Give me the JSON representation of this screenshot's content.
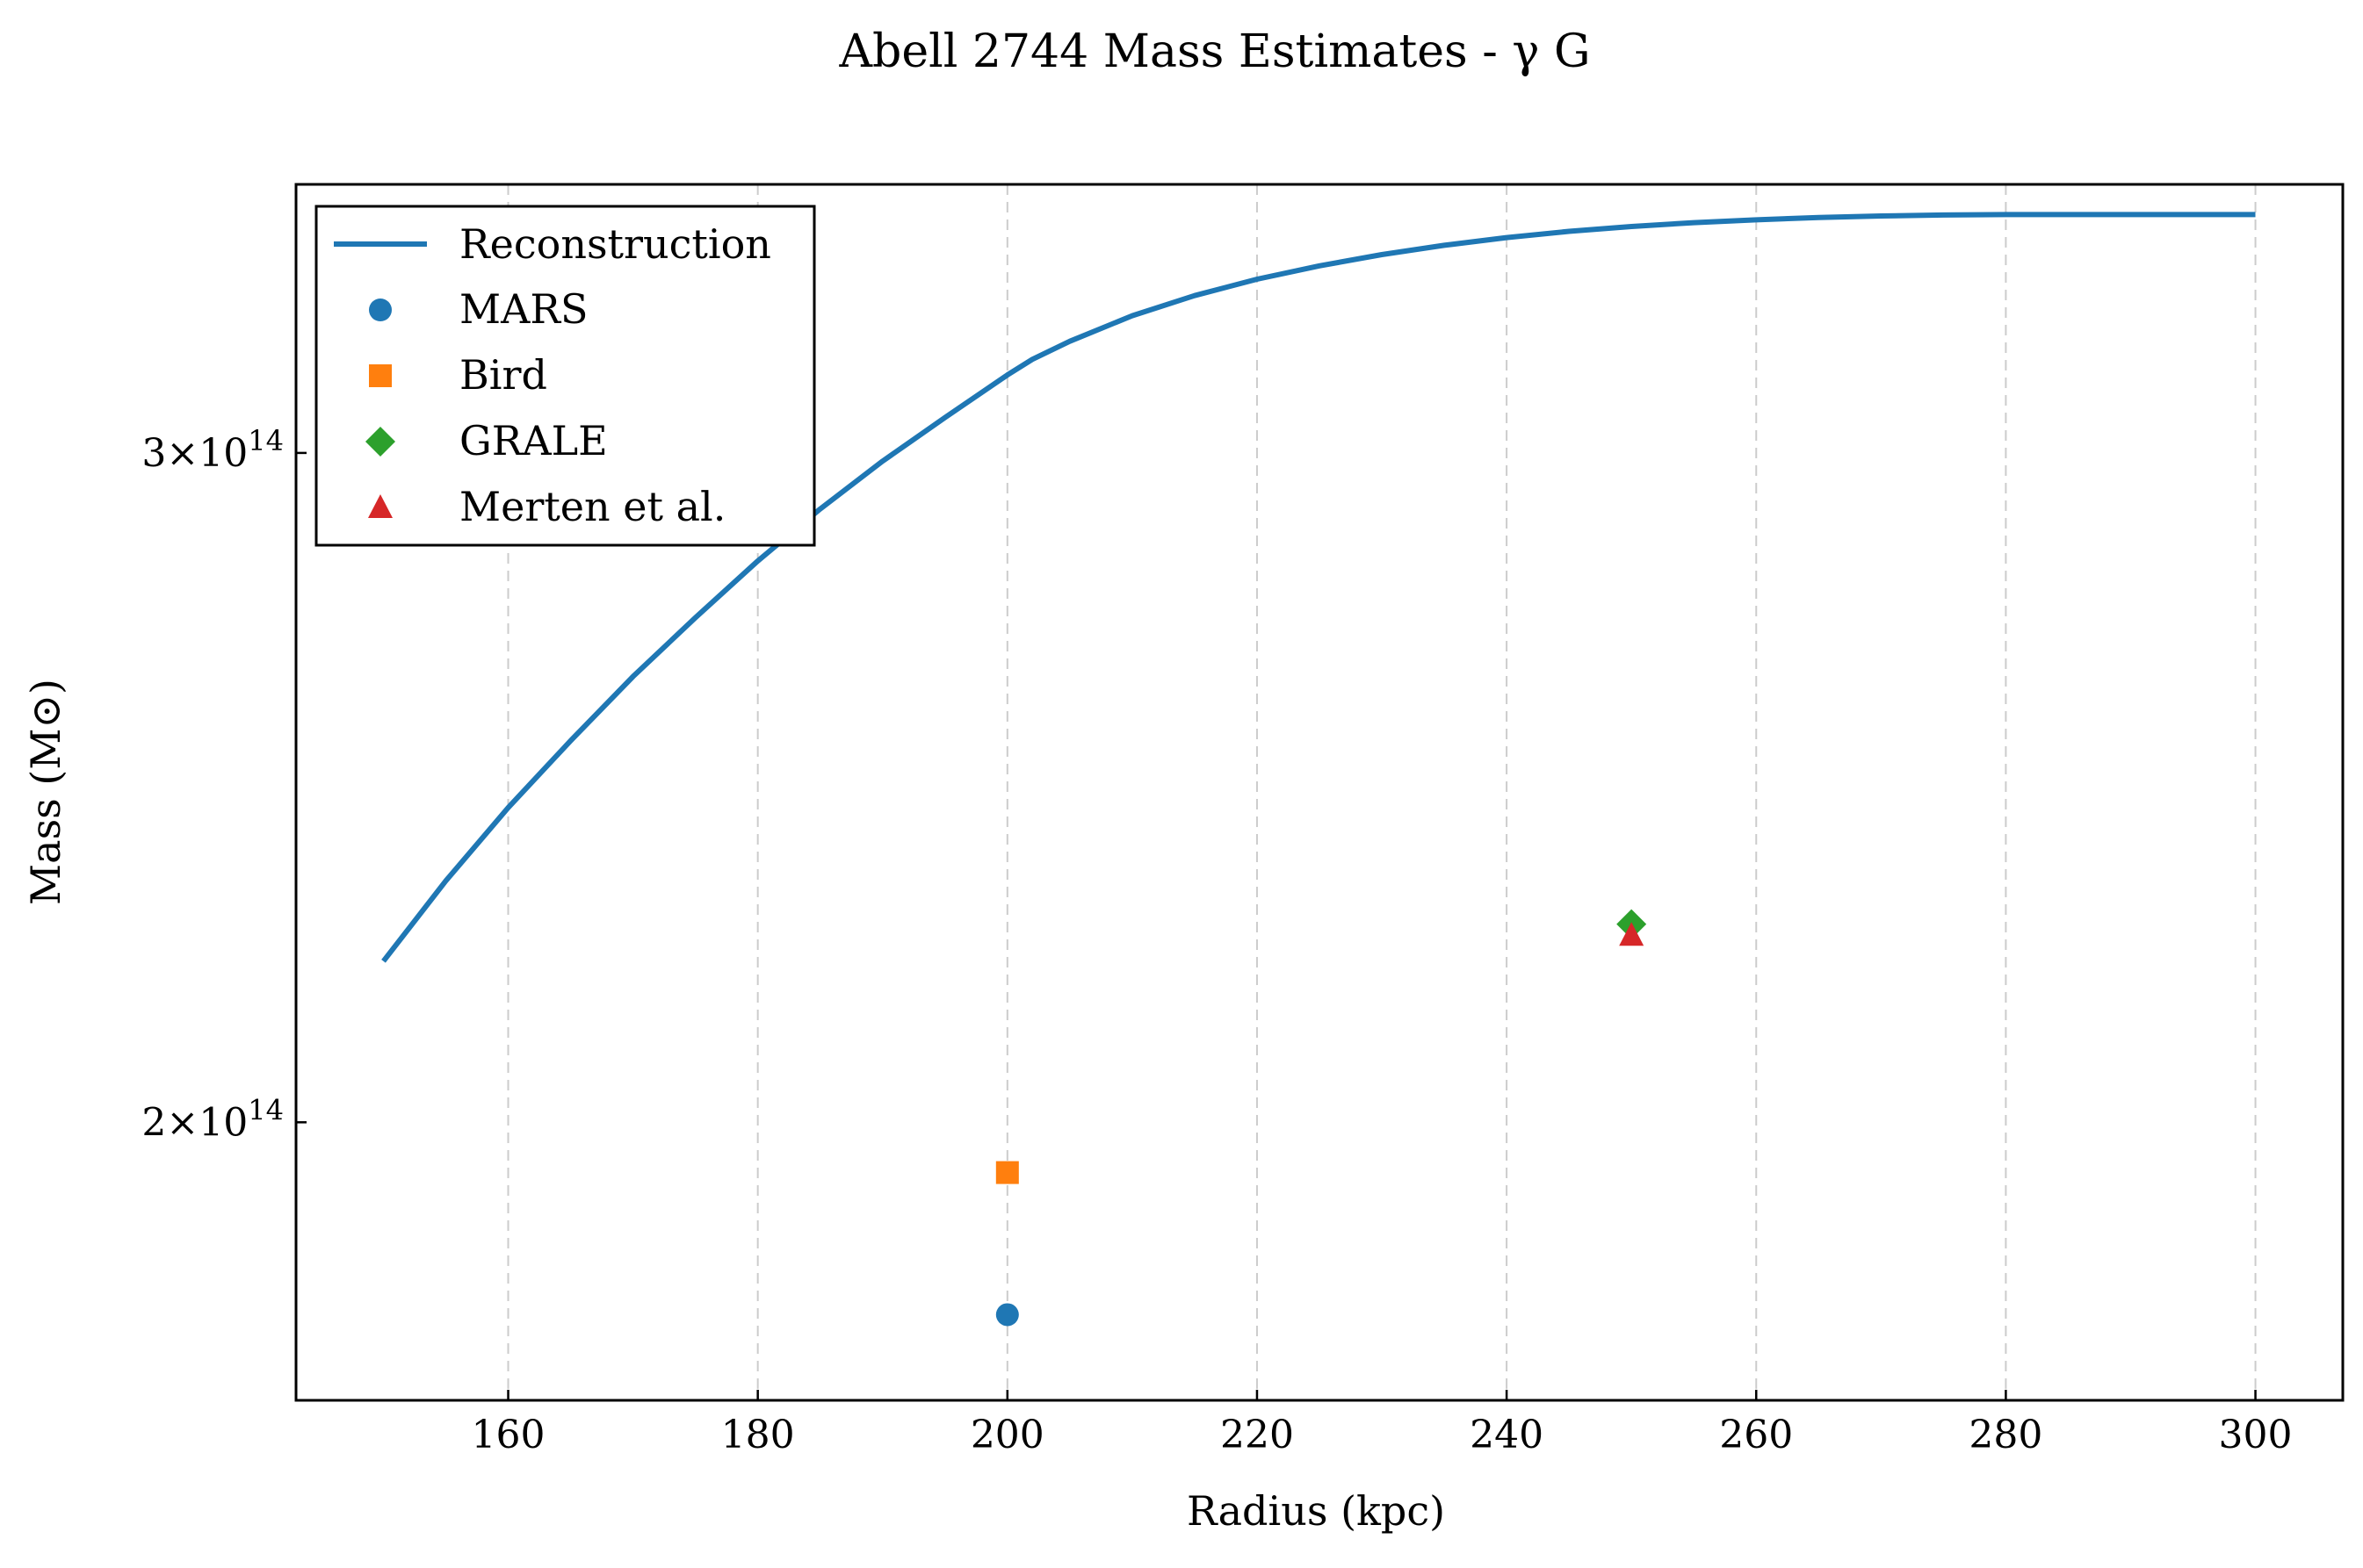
{
  "chart_data": {
    "type": "line",
    "title": "Abell 2744 Mass Estimates - γ G",
    "xlabel": "Radius (kpc)",
    "ylabel": "Mass (M⊙)",
    "xlim": [
      143,
      307
    ],
    "ylim": [
      169000000000000.0,
      353000000000000.0
    ],
    "yscale": "log",
    "x_ticks": [
      160,
      180,
      200,
      220,
      240,
      260,
      280,
      300
    ],
    "x_tick_labels": [
      "160",
      "180",
      "200",
      "220",
      "240",
      "260",
      "280",
      "300"
    ],
    "y_ticks": [
      {
        "value": 300000000000000.0,
        "mantissa": "3",
        "exponent": "14"
      },
      {
        "value": 200000000000000.0,
        "mantissa": "2",
        "exponent": "14"
      }
    ],
    "grid": "vertical, dashed",
    "legend_position": "upper-left",
    "series": [
      {
        "name": "Reconstruction",
        "kind": "line",
        "color": "#1f77b4",
        "x": [
          150,
          155,
          160,
          165,
          170,
          175,
          180,
          185,
          190,
          195,
          200,
          202,
          205,
          210,
          215,
          220,
          225,
          230,
          235,
          240,
          245,
          250,
          255,
          260,
          265,
          270,
          275,
          280,
          285,
          290,
          295,
          300
        ],
        "y": [
          220500000000000.0,
          231500000000000.0,
          242000000000000.0,
          252000000000000.0,
          262000000000000.0,
          271500000000000.0,
          281000000000000.0,
          290000000000000.0,
          298500000000000.0,
          306500000000000.0,
          314500000000000.0,
          317500000000000.0,
          321000000000000.0,
          326000000000000.0,
          330000000000000.0,
          333300000000000.0,
          336000000000000.0,
          338300000000000.0,
          340200000000000.0,
          341800000000000.0,
          343100000000000.0,
          344100000000000.0,
          344900000000000.0,
          345500000000000.0,
          346000000000000.0,
          346300000000000.0,
          346500000000000.0,
          346600000000000.0,
          346600000000000.0,
          346600000000000.0,
          346600000000000.0,
          346600000000000.0
        ]
      },
      {
        "name": "MARS",
        "kind": "marker",
        "marker": "circle",
        "color": "#1f77b4",
        "x": [
          200
        ],
        "y": [
          178000000000000.0
        ]
      },
      {
        "name": "Bird",
        "kind": "marker",
        "marker": "square",
        "color": "#ff7f0e",
        "x": [
          200
        ],
        "y": [
          194000000000000.0
        ]
      },
      {
        "name": "GRALE",
        "kind": "marker",
        "marker": "diamond",
        "color": "#2ca02c",
        "x": [
          250
        ],
        "y": [
          225500000000000.0
        ]
      },
      {
        "name": "Merten et al.",
        "kind": "marker",
        "marker": "triangle",
        "color": "#d62728",
        "x": [
          250
        ],
        "y": [
          224000000000000.0
        ]
      }
    ]
  }
}
